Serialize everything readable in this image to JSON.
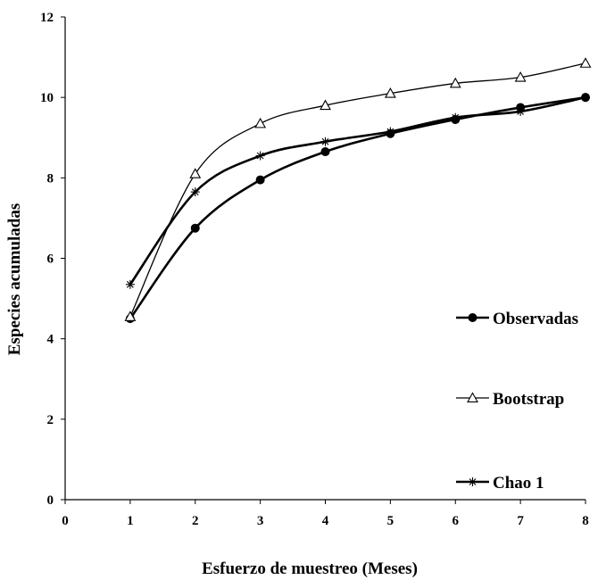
{
  "chart_data": {
    "type": "line",
    "xlabel": "Esfuerzo de muestreo (Meses)",
    "ylabel": "Especies acumuladas",
    "xlim": [
      0,
      8
    ],
    "ylim": [
      0,
      12
    ],
    "x_ticks": [
      "0",
      "1",
      "2",
      "3",
      "4",
      "5",
      "6",
      "7",
      "8"
    ],
    "y_ticks": [
      "0",
      "2",
      "4",
      "6",
      "8",
      "10",
      "12"
    ],
    "grid": false,
    "legend_position": "right",
    "x": [
      1,
      2,
      3,
      4,
      5,
      6,
      7,
      8
    ],
    "series": [
      {
        "name": "Observadas",
        "marker": "circle",
        "line_weight": "bold",
        "values": [
          4.5,
          6.75,
          7.95,
          8.65,
          9.1,
          9.45,
          9.75,
          10.0
        ]
      },
      {
        "name": "Bootstrap",
        "marker": "triangle",
        "line_weight": "normal",
        "values": [
          4.55,
          8.1,
          9.35,
          9.8,
          10.1,
          10.35,
          10.5,
          10.85
        ]
      },
      {
        "name": "Chao 1",
        "marker": "star",
        "line_weight": "bold",
        "values": [
          5.35,
          7.65,
          8.55,
          8.9,
          9.15,
          9.5,
          9.65,
          10.0
        ]
      }
    ]
  }
}
